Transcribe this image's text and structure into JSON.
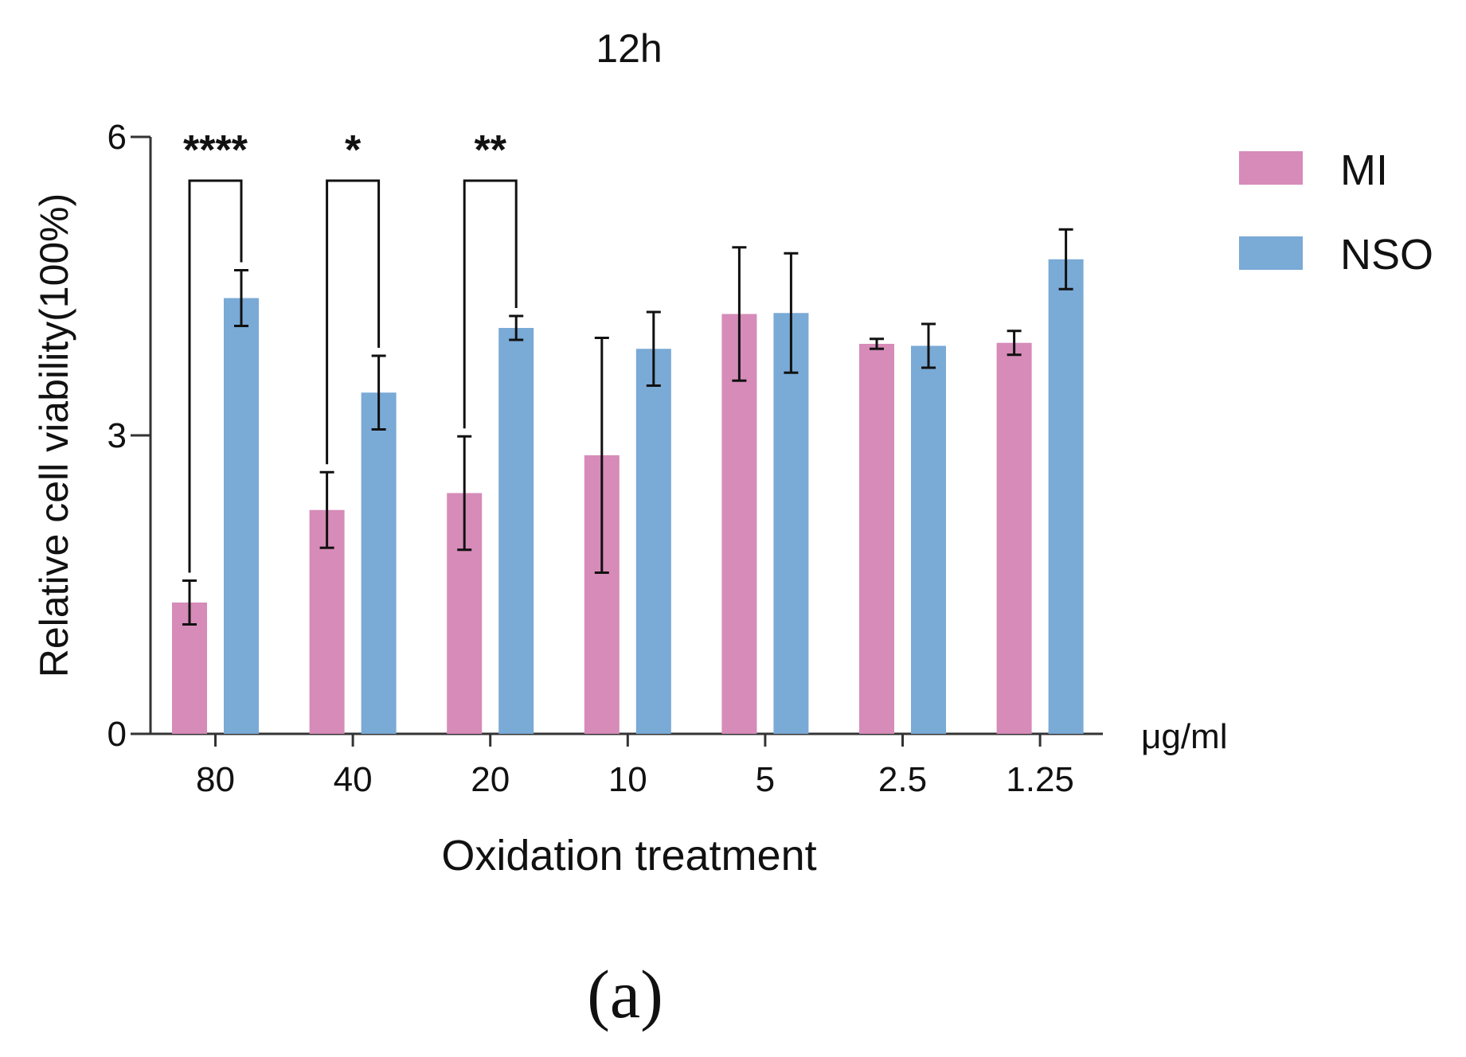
{
  "chart_data": {
    "type": "bar",
    "title": "12h",
    "xlabel": "Oxidation treatment",
    "ylabel": "Relative cell viability(100%)",
    "unit_label": "μg/ml",
    "panel_label": "(a)",
    "ylim": [
      0,
      6
    ],
    "yticks": [
      "0",
      "3",
      "6"
    ],
    "categories": [
      "80",
      "40",
      "20",
      "10",
      "5",
      "2.5",
      "1.25"
    ],
    "series": [
      {
        "name": "MI",
        "color": "#d68bb8",
        "values": [
          1.32,
          2.25,
          2.42,
          2.8,
          4.22,
          3.92,
          3.93
        ],
        "errors": [
          0.22,
          0.38,
          0.57,
          1.18,
          0.67,
          0.05,
          0.12
        ]
      },
      {
        "name": "NSO",
        "color": "#7aaad6",
        "values": [
          4.38,
          3.43,
          4.08,
          3.87,
          4.23,
          3.9,
          4.77
        ],
        "errors": [
          0.28,
          0.37,
          0.12,
          0.37,
          0.6,
          0.22,
          0.3
        ]
      }
    ],
    "legend_position": "top-right",
    "significance": [
      {
        "category": "80",
        "label": "****"
      },
      {
        "category": "40",
        "label": "*"
      },
      {
        "category": "20",
        "label": "**"
      }
    ]
  }
}
